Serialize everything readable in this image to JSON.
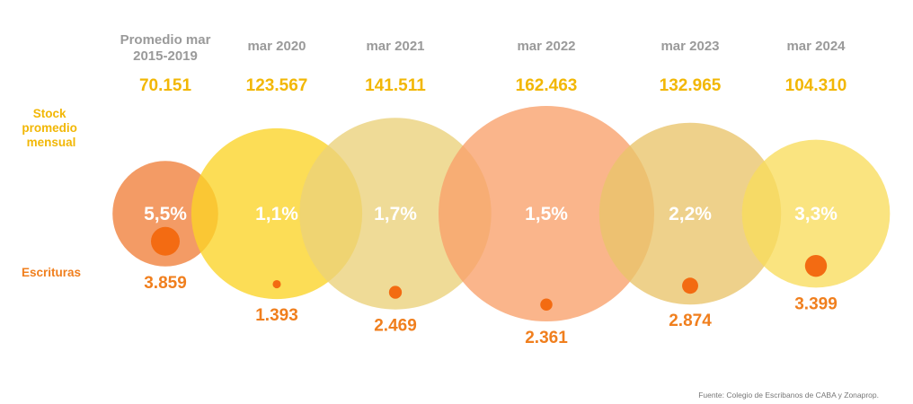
{
  "chart_data": {
    "type": "bubble",
    "row_labels": {
      "stock": [
        "Stock",
        "promedio",
        "mensual"
      ],
      "escrituras": "Escrituras"
    },
    "source": "Fuente: Colegio de Escribanos de CABA y Zonaprop.",
    "colors": {
      "stock_text": "#f2b705",
      "escrituras_text": "#f07f1e",
      "period_text": "#9a9a9a",
      "escrituras_dot": "#f36b12"
    },
    "periods": [
      {
        "label": [
          "Promedio mar",
          "2015-2019"
        ],
        "stock": 70151,
        "stock_label": "70.151",
        "escrituras": 3859,
        "escrituras_label": "3.859",
        "ratio_label": "5,5%",
        "bubble_color": "#f07f3a"
      },
      {
        "label": [
          "mar 2020"
        ],
        "stock": 123567,
        "stock_label": "123.567",
        "escrituras": 1393,
        "escrituras_label": "1.393",
        "ratio_label": "1,1%",
        "bubble_color": "#fbd426"
      },
      {
        "label": [
          "mar 2021"
        ],
        "stock": 141511,
        "stock_label": "141.511",
        "escrituras": 2469,
        "escrituras_label": "2.469",
        "ratio_label": "1,7%",
        "bubble_color": "#ebd17a"
      },
      {
        "label": [
          "mar 2022"
        ],
        "stock": 162463,
        "stock_label": "162.463",
        "escrituras": 2361,
        "escrituras_label": "2.361",
        "ratio_label": "1,5%",
        "bubble_color": "#f8a06a"
      },
      {
        "label": [
          "mar 2023"
        ],
        "stock": 132965,
        "stock_label": "132.965",
        "escrituras": 2874,
        "escrituras_label": "2.874",
        "ratio_label": "2,2%",
        "bubble_color": "#e9c46a"
      },
      {
        "label": [
          "mar 2024"
        ],
        "stock": 104310,
        "stock_label": "104.310",
        "escrituras": 3399,
        "escrituras_label": "3.399",
        "ratio_label": "3,3%",
        "bubble_color": "#f9dc5c"
      }
    ]
  }
}
